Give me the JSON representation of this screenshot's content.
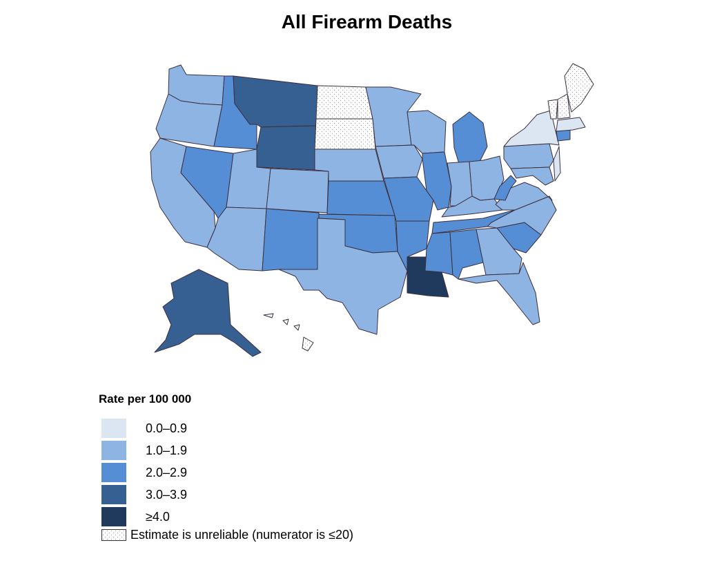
{
  "title": "All Firearm Deaths",
  "legend": {
    "title": "Rate per 100 000",
    "bins": [
      {
        "label": "0.0–0.9",
        "color": "#dce6f2"
      },
      {
        "label": "1.0–1.9",
        "color": "#8eb4e3"
      },
      {
        "label": "2.0–2.9",
        "color": "#558ed5"
      },
      {
        "label": "3.0–3.9",
        "color": "#376092"
      },
      {
        "label": "≥4.0",
        "color": "#1f3a5c"
      }
    ],
    "unreliable_label": "Estimate is unreliable (numerator is ≤20)"
  },
  "map_data": {
    "WA": "1.0–1.9",
    "OR": "1.0–1.9",
    "CA": "1.0–1.9",
    "ID": "2.0–2.9",
    "NV": "2.0–2.9",
    "MT": "3.0–3.9",
    "WY": "3.0–3.9",
    "UT": "1.0–1.9",
    "CO": "1.0–1.9",
    "AZ": "1.0–1.9",
    "NM": "2.0–2.9",
    "ND": "unreliable",
    "SD": "unreliable",
    "NE": "1.0–1.9",
    "KS": "2.0–2.9",
    "OK": "2.0–2.9",
    "TX": "1.0–1.9",
    "MN": "1.0–1.9",
    "IA": "1.0–1.9",
    "MO": "2.0–2.9",
    "AR": "2.0–2.9",
    "LA": "≥4.0",
    "WI": "1.0–1.9",
    "IL": "2.0–2.9",
    "MI": "2.0–2.9",
    "IN": "1.0–1.9",
    "OH": "1.0–1.9",
    "KY": "1.0–1.9",
    "TN": "2.0–2.9",
    "MS": "2.0–2.9",
    "AL": "2.0–2.9",
    "GA": "1.0–1.9",
    "FL": "1.0–1.9",
    "SC": "2.0–2.9",
    "NC": "1.0–1.9",
    "VA": "1.0–1.9",
    "WV": "2.0–2.9",
    "PA": "1.0–1.9",
    "NY": "0.0–0.9",
    "MD": "1.0–1.9",
    "CT": "2.0–2.9",
    "MA": "0.0–0.9",
    "NJ": "0.0–0.9",
    "VT": "unreliable",
    "NH": "unreliable",
    "ME": "unreliable",
    "AK": "3.0–3.9",
    "HI": "unreliable"
  }
}
